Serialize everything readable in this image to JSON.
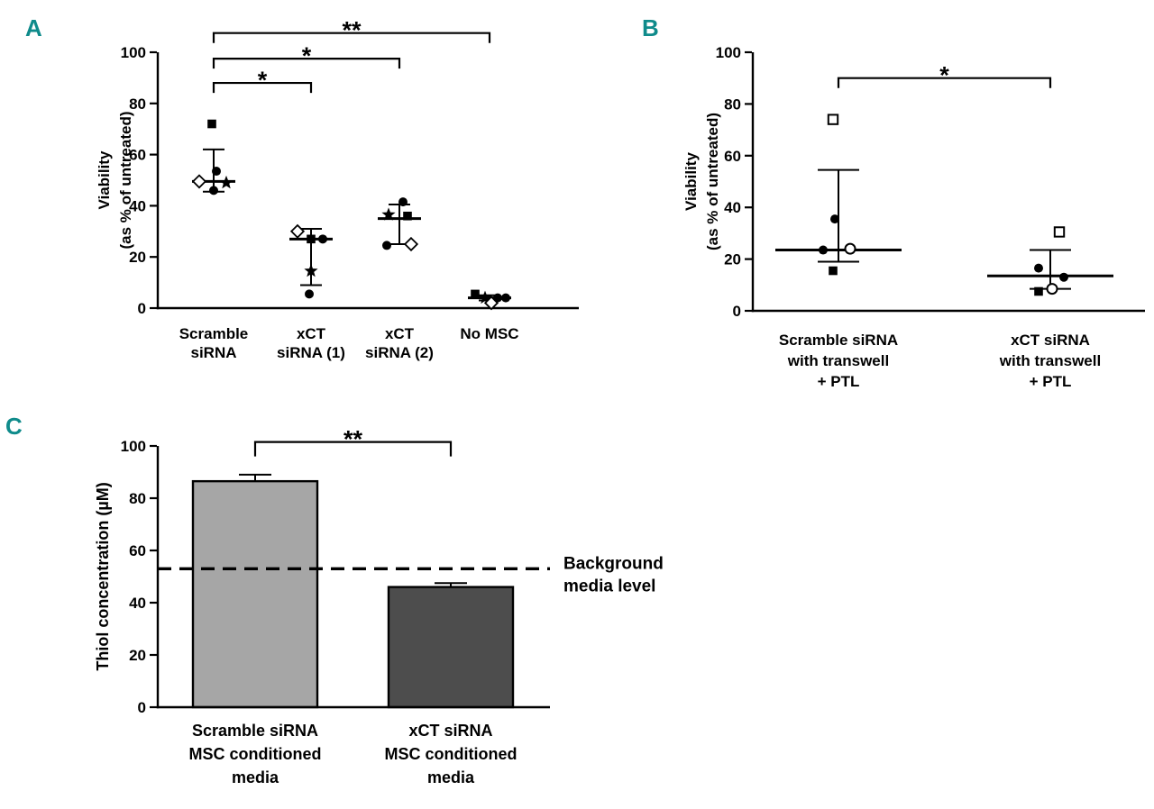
{
  "figure": {
    "panel_letter_color": "#0f8b8b",
    "panels": [
      {
        "letter": "A"
      },
      {
        "letter": "B"
      },
      {
        "letter": "C"
      }
    ]
  },
  "chart_data": [
    {
      "id": "A",
      "type": "scatter",
      "grid": false,
      "ylabel_lines": [
        "Viability",
        "(as % of untreated)"
      ],
      "ylim": [
        0,
        100
      ],
      "yticks": [
        0,
        20,
        40,
        60,
        80,
        100
      ],
      "categories": [
        "Scramble siRNA",
        "xCT siRNA (1)",
        "xCT siRNA (2)",
        "No MSC"
      ],
      "groups": [
        {
          "label_lines": [
            "Scramble",
            "siRNA"
          ],
          "mean": 49.5,
          "err_low": 45.5,
          "err_high": 62,
          "points": [
            {
              "shape": "square-filled",
              "value": 72,
              "dx": -2
            },
            {
              "shape": "circle-filled",
              "value": 53.5,
              "dx": 3
            },
            {
              "shape": "diamond-open",
              "value": 49.5,
              "dx": -16
            },
            {
              "shape": "star-filled",
              "value": 49,
              "dx": 14
            },
            {
              "shape": "circle-filled",
              "value": 46,
              "dx": 0
            }
          ]
        },
        {
          "label_lines": [
            "xCT",
            "siRNA (1)"
          ],
          "mean": 27,
          "err_low": 9,
          "err_high": 31,
          "points": [
            {
              "shape": "diamond-open",
              "value": 30,
              "dx": -15
            },
            {
              "shape": "square-filled",
              "value": 27,
              "dx": 0
            },
            {
              "shape": "circle-filled",
              "value": 27,
              "dx": 13
            },
            {
              "shape": "star-filled",
              "value": 14.5,
              "dx": 0
            },
            {
              "shape": "circle-filled",
              "value": 5.5,
              "dx": -2
            }
          ]
        },
        {
          "label_lines": [
            "xCT",
            "siRNA (2)"
          ],
          "mean": 35,
          "err_low": 25,
          "err_high": 40.5,
          "points": [
            {
              "shape": "circle-filled",
              "value": 41.5,
              "dx": 4
            },
            {
              "shape": "star-filled",
              "value": 36.5,
              "dx": -12
            },
            {
              "shape": "square-filled",
              "value": 36,
              "dx": 9
            },
            {
              "shape": "circle-filled",
              "value": 24.5,
              "dx": -14
            },
            {
              "shape": "diamond-open",
              "value": 25,
              "dx": 13
            }
          ]
        },
        {
          "label_lines": [
            "No MSC"
          ],
          "mean": 4,
          "err_low": 3,
          "err_high": 5,
          "points": [
            {
              "shape": "square-filled",
              "value": 5.5,
              "dx": -16
            },
            {
              "shape": "star-filled",
              "value": 4,
              "dx": -5
            },
            {
              "shape": "diamond-open",
              "value": 2,
              "dx": 2
            },
            {
              "shape": "circle-filled",
              "value": 4,
              "dx": 9
            },
            {
              "shape": "circle-filled",
              "value": 4,
              "dx": 18
            }
          ]
        }
      ],
      "brackets": [
        {
          "from": 0,
          "to": 1,
          "y": 88,
          "label": "*"
        },
        {
          "from": 0,
          "to": 2,
          "y": 97.5,
          "label": "*"
        },
        {
          "from": 0,
          "to": 3,
          "y": 107.5,
          "label": "**"
        }
      ]
    },
    {
      "id": "B",
      "type": "scatter",
      "grid": false,
      "ylabel_lines": [
        "Viability",
        "(as % of untreated)"
      ],
      "ylim": [
        0,
        100
      ],
      "yticks": [
        0,
        20,
        40,
        60,
        80,
        100
      ],
      "categories": [
        "Scramble siRNA with transwell + PTL",
        "xCT siRNA with transwell + PTL"
      ],
      "groups": [
        {
          "label_lines": [
            "Scramble siRNA",
            "with transwell",
            "+ PTL"
          ],
          "mean": 23.5,
          "err_low": 19,
          "err_high": 54.5,
          "points": [
            {
              "shape": "square-open",
              "value": 74,
              "dx": -6
            },
            {
              "shape": "circle-filled",
              "value": 35.5,
              "dx": -4
            },
            {
              "shape": "circle-filled",
              "value": 23.5,
              "dx": -17
            },
            {
              "shape": "circle-open",
              "value": 24,
              "dx": 13
            },
            {
              "shape": "square-filled",
              "value": 15.5,
              "dx": -6
            }
          ]
        },
        {
          "label_lines": [
            "xCT siRNA",
            "with transwell",
            "+ PTL"
          ],
          "mean": 13.5,
          "err_low": 8.5,
          "err_high": 23.5,
          "points": [
            {
              "shape": "square-open",
              "value": 30.5,
              "dx": 10
            },
            {
              "shape": "circle-filled",
              "value": 16.5,
              "dx": -13
            },
            {
              "shape": "circle-filled",
              "value": 13,
              "dx": 15
            },
            {
              "shape": "square-filled",
              "value": 7.5,
              "dx": -13
            },
            {
              "shape": "circle-open",
              "value": 8.5,
              "dx": 2
            }
          ]
        }
      ],
      "brackets": [
        {
          "from": 0,
          "to": 1,
          "y": 90,
          "label": "*"
        }
      ]
    },
    {
      "id": "C",
      "type": "bar",
      "grid": false,
      "ylabel_lines": [
        "Thiol concentration (µM)"
      ],
      "ylim": [
        0,
        100
      ],
      "yticks": [
        0,
        20,
        40,
        60,
        80,
        100
      ],
      "categories": [
        "Scramble siRNA MSC conditioned media",
        "xCT siRNA MSC conditioned media"
      ],
      "bars": [
        {
          "label_lines": [
            "Scramble siRNA",
            "MSC conditioned",
            "media"
          ],
          "value": 86.5,
          "err_high": 89,
          "color": "#a6a6a6"
        },
        {
          "label_lines": [
            "xCT siRNA",
            "MSC conditioned",
            "media"
          ],
          "value": 46,
          "err_high": 47.5,
          "color": "#4d4d4d"
        }
      ],
      "reference_line": {
        "value": 53,
        "label_lines": [
          "Background",
          "media level"
        ]
      },
      "brackets": [
        {
          "from": 0,
          "to": 1,
          "y": 101.5,
          "label": "**"
        }
      ]
    }
  ]
}
